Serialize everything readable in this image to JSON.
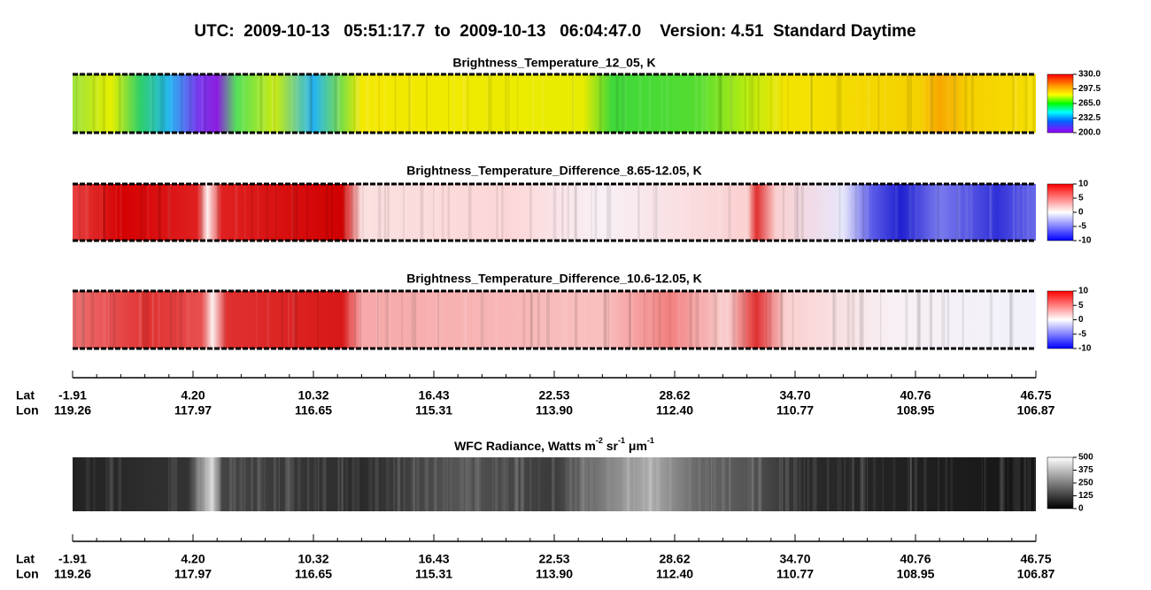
{
  "header": {
    "title": "UTC:  2009-10-13   05:51:17.7  to  2009-10-13   06:04:47.0    Version: 4.51  Standard Daytime"
  },
  "panels": [
    {
      "title": "Brightness_Temperature_12_05, K",
      "colorbar": [
        "330.0",
        "297.5",
        "265.0",
        "232.5",
        "200.0"
      ]
    },
    {
      "title": "Brightness_Temperature_Difference_8.65-12.05, K",
      "colorbar": [
        "10",
        "5",
        "0",
        "-5",
        "-10"
      ]
    },
    {
      "title": "Brightness_Temperature_Difference_10.6-12.05, K",
      "colorbar": [
        "10",
        "5",
        "0",
        "-5",
        "-10"
      ]
    }
  ],
  "axes": [
    {
      "lat_label": "Lat",
      "lon_label": "Lon",
      "lat": [
        "-1.91",
        "4.20",
        "10.32",
        "16.43",
        "22.53",
        "28.62",
        "34.70",
        "40.76",
        "46.75"
      ],
      "lon": [
        "119.26",
        "117.97",
        "116.65",
        "115.31",
        "113.90",
        "112.40",
        "110.77",
        "108.95",
        "106.87"
      ]
    },
    {
      "lat_label": "Lat",
      "lon_label": "Lon",
      "lat": [
        "-1.91",
        "4.20",
        "10.32",
        "16.43",
        "22.53",
        "28.62",
        "34.70",
        "40.76",
        "46.75"
      ],
      "lon": [
        "119.26",
        "117.97",
        "116.65",
        "115.31",
        "113.90",
        "112.40",
        "110.77",
        "108.95",
        "106.87"
      ]
    }
  ],
  "wfc_panel": {
    "title": [
      "WFC Radiance, Watts m",
      "-2",
      " sr",
      "-1",
      " μm",
      "-1"
    ],
    "colorbar": [
      "500",
      "375",
      "250",
      "125",
      "0"
    ]
  }
}
